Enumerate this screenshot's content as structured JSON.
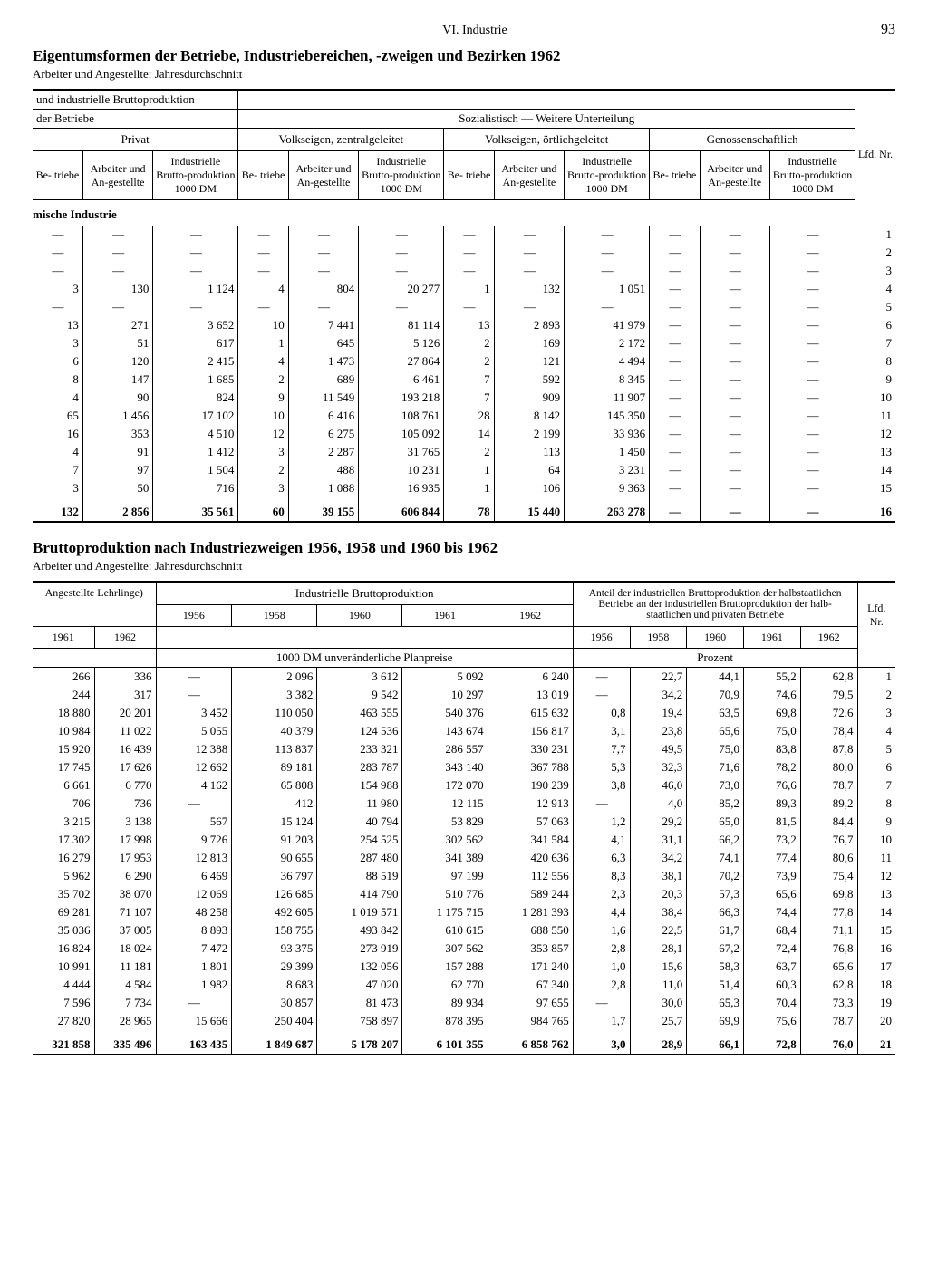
{
  "page": {
    "chapter": "VI. Industrie",
    "number": "93"
  },
  "table1": {
    "title": "Eigentumsformen der Betriebe, Industriebereichen, -zweigen und Bezirken 1962",
    "subtitle": "Arbeiter und Angestellte: Jahresdurchschnitt",
    "top_span": "und industrielle Bruttoproduktion",
    "span_left": "der Betriebe",
    "span_right": "Sozialistisch — Weitere Unterteilung",
    "group_privat": "Privat",
    "group_vz": "Volkseigen, zentralgeleitet",
    "group_vo": "Volkseigen, örtlichgeleitet",
    "group_gen": "Genossenschaftlich",
    "lfd": "Lfd. Nr.",
    "col_betriebe": "Be-\ntriebe",
    "col_arb": "Arbeiter und An-gestellte",
    "col_brutto": "Industrielle Brutto-produktion 1000 DM",
    "section": "mische Industrie",
    "rows": [
      {
        "p": [
          "—",
          "—",
          "—"
        ],
        "vz": [
          "—",
          "—",
          "—"
        ],
        "vo": [
          "—",
          "—",
          "—"
        ],
        "g": [
          "—",
          "—",
          "—"
        ],
        "n": "1"
      },
      {
        "p": [
          "—",
          "—",
          "—"
        ],
        "vz": [
          "—",
          "—",
          "—"
        ],
        "vo": [
          "—",
          "—",
          "—"
        ],
        "g": [
          "—",
          "—",
          "—"
        ],
        "n": "2"
      },
      {
        "p": [
          "—",
          "—",
          "—"
        ],
        "vz": [
          "—",
          "—",
          "—"
        ],
        "vo": [
          "—",
          "—",
          "—"
        ],
        "g": [
          "—",
          "—",
          "—"
        ],
        "n": "3"
      },
      {
        "p": [
          "3",
          "130",
          "1 124"
        ],
        "vz": [
          "4",
          "804",
          "20 277"
        ],
        "vo": [
          "1",
          "132",
          "1 051"
        ],
        "g": [
          "—",
          "—",
          "—"
        ],
        "n": "4"
      },
      {
        "p": [
          "—",
          "—",
          "—"
        ],
        "vz": [
          "—",
          "—",
          "—"
        ],
        "vo": [
          "—",
          "—",
          "—"
        ],
        "g": [
          "—",
          "—",
          "—"
        ],
        "n": "5"
      },
      {
        "p": [
          "13",
          "271",
          "3 652"
        ],
        "vz": [
          "10",
          "7 441",
          "81 114"
        ],
        "vo": [
          "13",
          "2 893",
          "41 979"
        ],
        "g": [
          "—",
          "—",
          "—"
        ],
        "n": "6"
      },
      {
        "p": [
          "3",
          "51",
          "617"
        ],
        "vz": [
          "1",
          "645",
          "5 126"
        ],
        "vo": [
          "2",
          "169",
          "2 172"
        ],
        "g": [
          "—",
          "—",
          "—"
        ],
        "n": "7"
      },
      {
        "p": [
          "6",
          "120",
          "2 415"
        ],
        "vz": [
          "4",
          "1 473",
          "27 864"
        ],
        "vo": [
          "2",
          "121",
          "4 494"
        ],
        "g": [
          "—",
          "—",
          "—"
        ],
        "n": "8"
      },
      {
        "p": [
          "8",
          "147",
          "1 685"
        ],
        "vz": [
          "2",
          "689",
          "6 461"
        ],
        "vo": [
          "7",
          "592",
          "8 345"
        ],
        "g": [
          "—",
          "—",
          "—"
        ],
        "n": "9"
      },
      {
        "p": [
          "4",
          "90",
          "824"
        ],
        "vz": [
          "9",
          "11 549",
          "193 218"
        ],
        "vo": [
          "7",
          "909",
          "11 907"
        ],
        "g": [
          "—",
          "—",
          "—"
        ],
        "n": "10"
      },
      {
        "p": [
          "65",
          "1 456",
          "17 102"
        ],
        "vz": [
          "10",
          "6 416",
          "108 761"
        ],
        "vo": [
          "28",
          "8 142",
          "145 350"
        ],
        "g": [
          "—",
          "—",
          "—"
        ],
        "n": "11"
      },
      {
        "p": [
          "16",
          "353",
          "4 510"
        ],
        "vz": [
          "12",
          "6 275",
          "105 092"
        ],
        "vo": [
          "14",
          "2 199",
          "33 936"
        ],
        "g": [
          "—",
          "—",
          "—"
        ],
        "n": "12"
      },
      {
        "p": [
          "4",
          "91",
          "1 412"
        ],
        "vz": [
          "3",
          "2 287",
          "31 765"
        ],
        "vo": [
          "2",
          "113",
          "1 450"
        ],
        "g": [
          "—",
          "—",
          "—"
        ],
        "n": "13"
      },
      {
        "p": [
          "7",
          "97",
          "1 504"
        ],
        "vz": [
          "2",
          "488",
          "10 231"
        ],
        "vo": [
          "1",
          "64",
          "3 231"
        ],
        "g": [
          "—",
          "—",
          "—"
        ],
        "n": "14"
      },
      {
        "p": [
          "3",
          "50",
          "716"
        ],
        "vz": [
          "3",
          "1 088",
          "16 935"
        ],
        "vo": [
          "1",
          "106",
          "9 363"
        ],
        "g": [
          "—",
          "—",
          "—"
        ],
        "n": "15"
      }
    ],
    "total": {
      "p": [
        "132",
        "2 856",
        "35 561"
      ],
      "vz": [
        "60",
        "39 155",
        "606 844"
      ],
      "vo": [
        "78",
        "15 440",
        "263 278"
      ],
      "g": [
        "—",
        "—",
        "—"
      ],
      "n": "16"
    }
  },
  "table2": {
    "title": "Bruttoproduktion nach Industriezweigen 1956, 1958 und 1960 bis 1962",
    "subtitle": "Arbeiter und Angestellte: Jahresdurchschnitt",
    "span_ang": "Angestellte Lehrlinge)",
    "span_brutto": "Industrielle Bruttoproduktion",
    "span_anteil": "Anteil der industriellen Bruttoproduktion der halbstaatlichen Betriebe an der industriellen Bruttoproduktion der halb-staatlichen und privaten Betriebe",
    "lfd": "Lfd. Nr.",
    "sub_1000dm": "1000 DM unveränderliche Planpreise",
    "sub_prozent": "Prozent",
    "years_a": [
      "1961",
      "1962"
    ],
    "years_b": [
      "1956",
      "1958",
      "1960",
      "1961",
      "1962"
    ],
    "years_c": [
      "1956",
      "1958",
      "1960",
      "1961",
      "1962"
    ],
    "rows": [
      {
        "a": [
          "266",
          "336"
        ],
        "b": [
          "—",
          "2 096",
          "3 612",
          "5 092",
          "6 240"
        ],
        "c": [
          "—",
          "22,7",
          "44,1",
          "55,2",
          "62,8"
        ],
        "n": "1"
      },
      {
        "a": [
          "244",
          "317"
        ],
        "b": [
          "—",
          "3 382",
          "9 542",
          "10 297",
          "13 019"
        ],
        "c": [
          "—",
          "34,2",
          "70,9",
          "74,6",
          "79,5"
        ],
        "n": "2"
      },
      {
        "a": [
          "18 880",
          "20 201"
        ],
        "b": [
          "3 452",
          "110 050",
          "463 555",
          "540 376",
          "615 632"
        ],
        "c": [
          "0,8",
          "19,4",
          "63,5",
          "69,8",
          "72,6"
        ],
        "n": "3"
      },
      {
        "a": [
          "10 984",
          "11 022"
        ],
        "b": [
          "5 055",
          "40 379",
          "124 536",
          "143 674",
          "156 817"
        ],
        "c": [
          "3,1",
          "23,8",
          "65,6",
          "75,0",
          "78,4"
        ],
        "n": "4"
      },
      {
        "a": [
          "15 920",
          "16 439"
        ],
        "b": [
          "12 388",
          "113 837",
          "233 321",
          "286 557",
          "330 231"
        ],
        "c": [
          "7,7",
          "49,5",
          "75,0",
          "83,8",
          "87,8"
        ],
        "n": "5"
      },
      {
        "a": [
          "17 745",
          "17 626"
        ],
        "b": [
          "12 662",
          "89 181",
          "283 787",
          "343 140",
          "367 788"
        ],
        "c": [
          "5,3",
          "32,3",
          "71,6",
          "78,2",
          "80,0"
        ],
        "n": "6"
      },
      {
        "a": [
          "6 661",
          "6 770"
        ],
        "b": [
          "4 162",
          "65 808",
          "154 988",
          "172 070",
          "190 239"
        ],
        "c": [
          "3,8",
          "46,0",
          "73,0",
          "76,6",
          "78,7"
        ],
        "n": "7"
      },
      {
        "a": [
          "706",
          "736"
        ],
        "b": [
          "—",
          "412",
          "11 980",
          "12 115",
          "12 913"
        ],
        "c": [
          "—",
          "4,0",
          "85,2",
          "89,3",
          "89,2"
        ],
        "n": "8"
      },
      {
        "a": [
          "3 215",
          "3 138"
        ],
        "b": [
          "567",
          "15 124",
          "40 794",
          "53 829",
          "57 063"
        ],
        "c": [
          "1,2",
          "29,2",
          "65,0",
          "81,5",
          "84,4"
        ],
        "n": "9"
      },
      {
        "a": [
          "17 302",
          "17 998"
        ],
        "b": [
          "9 726",
          "91 203",
          "254 525",
          "302 562",
          "341 584"
        ],
        "c": [
          "4,1",
          "31,1",
          "66,2",
          "73,2",
          "76,7"
        ],
        "n": "10"
      },
      {
        "a": [
          "16 279",
          "17 953"
        ],
        "b": [
          "12 813",
          "90 655",
          "287 480",
          "341 389",
          "420 636"
        ],
        "c": [
          "6,3",
          "34,2",
          "74,1",
          "77,4",
          "80,6"
        ],
        "n": "11"
      },
      {
        "a": [
          "5 962",
          "6 290"
        ],
        "b": [
          "6 469",
          "36 797",
          "88 519",
          "97 199",
          "112 556"
        ],
        "c": [
          "8,3",
          "38,1",
          "70,2",
          "73,9",
          "75,4"
        ],
        "n": "12"
      },
      {
        "a": [
          "35 702",
          "38 070"
        ],
        "b": [
          "12 069",
          "126 685",
          "414 790",
          "510 776",
          "589 244"
        ],
        "c": [
          "2,3",
          "20,3",
          "57,3",
          "65,6",
          "69,8"
        ],
        "n": "13"
      },
      {
        "a": [
          "69 281",
          "71 107"
        ],
        "b": [
          "48 258",
          "492 605",
          "1 019 571",
          "1 175 715",
          "1 281 393"
        ],
        "c": [
          "4,4",
          "38,4",
          "66,3",
          "74,4",
          "77,8"
        ],
        "n": "14"
      },
      {
        "a": [
          "35 036",
          "37 005"
        ],
        "b": [
          "8 893",
          "158 755",
          "493 842",
          "610 615",
          "688 550"
        ],
        "c": [
          "1,6",
          "22,5",
          "61,7",
          "68,4",
          "71,1"
        ],
        "n": "15"
      },
      {
        "a": [
          "16 824",
          "18 024"
        ],
        "b": [
          "7 472",
          "93 375",
          "273 919",
          "307 562",
          "353 857"
        ],
        "c": [
          "2,8",
          "28,1",
          "67,2",
          "72,4",
          "76,8"
        ],
        "n": "16"
      },
      {
        "a": [
          "10 991",
          "11 181"
        ],
        "b": [
          "1 801",
          "29 399",
          "132 056",
          "157 288",
          "171 240"
        ],
        "c": [
          "1,0",
          "15,6",
          "58,3",
          "63,7",
          "65,6"
        ],
        "n": "17"
      },
      {
        "a": [
          "4 444",
          "4 584"
        ],
        "b": [
          "1 982",
          "8 683",
          "47 020",
          "62 770",
          "67 340"
        ],
        "c": [
          "2,8",
          "11,0",
          "51,4",
          "60,3",
          "62,8"
        ],
        "n": "18"
      },
      {
        "a": [
          "7 596",
          "7 734"
        ],
        "b": [
          "—",
          "30 857",
          "81 473",
          "89 934",
          "97 655"
        ],
        "c": [
          "—",
          "30,0",
          "65,3",
          "70,4",
          "73,3"
        ],
        "n": "19"
      },
      {
        "a": [
          "27 820",
          "28 965"
        ],
        "b": [
          "15 666",
          "250 404",
          "758 897",
          "878 395",
          "984 765"
        ],
        "c": [
          "1,7",
          "25,7",
          "69,9",
          "75,6",
          "78,7"
        ],
        "n": "20"
      }
    ],
    "total": {
      "a": [
        "321 858",
        "335 496"
      ],
      "b": [
        "163 435",
        "1 849 687",
        "5 178 207",
        "6 101 355",
        "6 858 762"
      ],
      "c": [
        "3,0",
        "28,9",
        "66,1",
        "72,8",
        "76,0"
      ],
      "n": "21"
    }
  }
}
